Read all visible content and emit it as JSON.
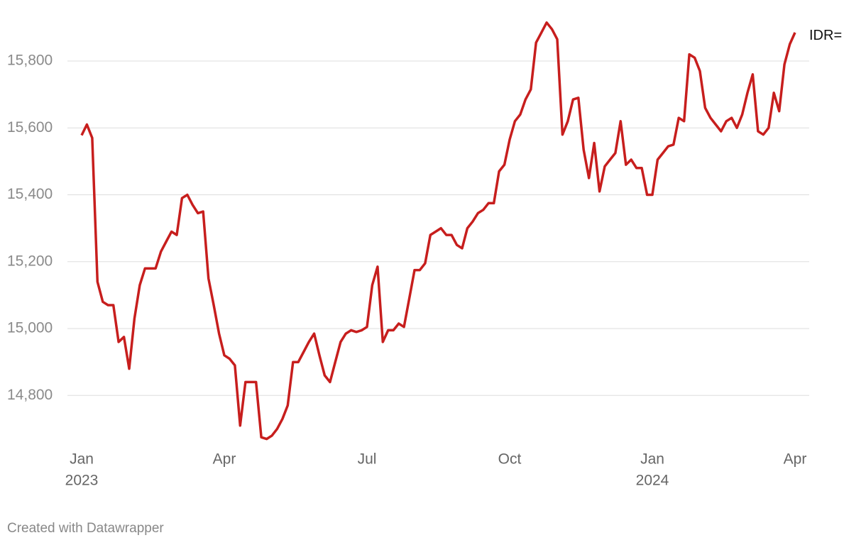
{
  "chart_data": {
    "type": "line",
    "categories": [
      "Jan",
      null,
      null,
      null,
      null,
      null,
      null,
      null,
      null,
      null,
      null,
      null,
      null,
      null,
      null,
      null,
      null,
      null,
      null,
      null,
      null,
      null,
      null,
      null,
      null,
      null,
      null,
      "Apr",
      null,
      null,
      null,
      null,
      null,
      null,
      null,
      null,
      null,
      null,
      null,
      null,
      null,
      null,
      null,
      null,
      null,
      null,
      null,
      null,
      null,
      null,
      null,
      null,
      null,
      null,
      "Jul",
      null,
      null,
      null,
      null,
      null,
      null,
      null,
      null,
      null,
      null,
      null,
      null,
      null,
      null,
      null,
      null,
      null,
      null,
      null,
      null,
      null,
      null,
      null,
      null,
      null,
      null,
      "Oct",
      null,
      null,
      null,
      null,
      null,
      null,
      null,
      null,
      null,
      null,
      null,
      null,
      null,
      null,
      null,
      null,
      null,
      null,
      null,
      null,
      null,
      null,
      null,
      null,
      null,
      null,
      "Jan",
      null,
      null,
      null,
      null,
      null,
      null,
      null,
      null,
      null,
      null,
      null,
      null,
      null,
      null,
      null,
      null,
      null,
      null,
      null,
      null,
      null,
      null,
      null,
      null,
      null,
      null,
      "Apr"
    ],
    "x_years": [
      "2023",
      "2024"
    ],
    "series": [
      {
        "name": "IDR=",
        "color": "#c71e1d",
        "values": [
          15578,
          15610,
          15570,
          15140,
          15080,
          15070,
          15070,
          14960,
          14975,
          14880,
          15030,
          15130,
          15180,
          15180,
          15180,
          15230,
          15260,
          15290,
          15280,
          15390,
          15400,
          15370,
          15345,
          15350,
          15150,
          15070,
          14985,
          14920,
          14910,
          14890,
          14710,
          14840,
          14840,
          14840,
          14675,
          14670,
          14680,
          14700,
          14730,
          14770,
          14900,
          14900,
          14930,
          14960,
          14985,
          14920,
          14860,
          14840,
          14900,
          14960,
          14985,
          14995,
          14990,
          14995,
          15005,
          15130,
          15185,
          14960,
          14995,
          14995,
          15015,
          15005,
          15090,
          15175,
          15175,
          15195,
          15280,
          15290,
          15300,
          15280,
          15280,
          15250,
          15240,
          15300,
          15320,
          15345,
          15355,
          15375,
          15375,
          15470,
          15490,
          15565,
          15620,
          15640,
          15685,
          15715,
          15855,
          15885,
          15915,
          15895,
          15865,
          15580,
          15620,
          15685,
          15690,
          15535,
          15450,
          15555,
          15410,
          15485,
          15505,
          15525,
          15620,
          15490,
          15505,
          15480,
          15480,
          15400,
          15400,
          15505,
          15525,
          15545,
          15550,
          15630,
          15620,
          15820,
          15810,
          15770,
          15660,
          15630,
          15610,
          15590,
          15620,
          15630,
          15600,
          15640,
          15705,
          15760,
          15590,
          15580,
          15600,
          15705,
          15650,
          15790,
          15850,
          15885
        ]
      }
    ],
    "ylim": [
      14650,
      15940
    ],
    "yticks": [
      {
        "value": 14800,
        "label": "14,800"
      },
      {
        "value": 15000,
        "label": "15,000"
      },
      {
        "value": 15200,
        "label": "15,200"
      },
      {
        "value": 15400,
        "label": "15,400"
      },
      {
        "value": 15600,
        "label": "15,600"
      },
      {
        "value": 15800,
        "label": "15,800"
      }
    ],
    "grid": true,
    "footer": "Created with Datawrapper"
  }
}
